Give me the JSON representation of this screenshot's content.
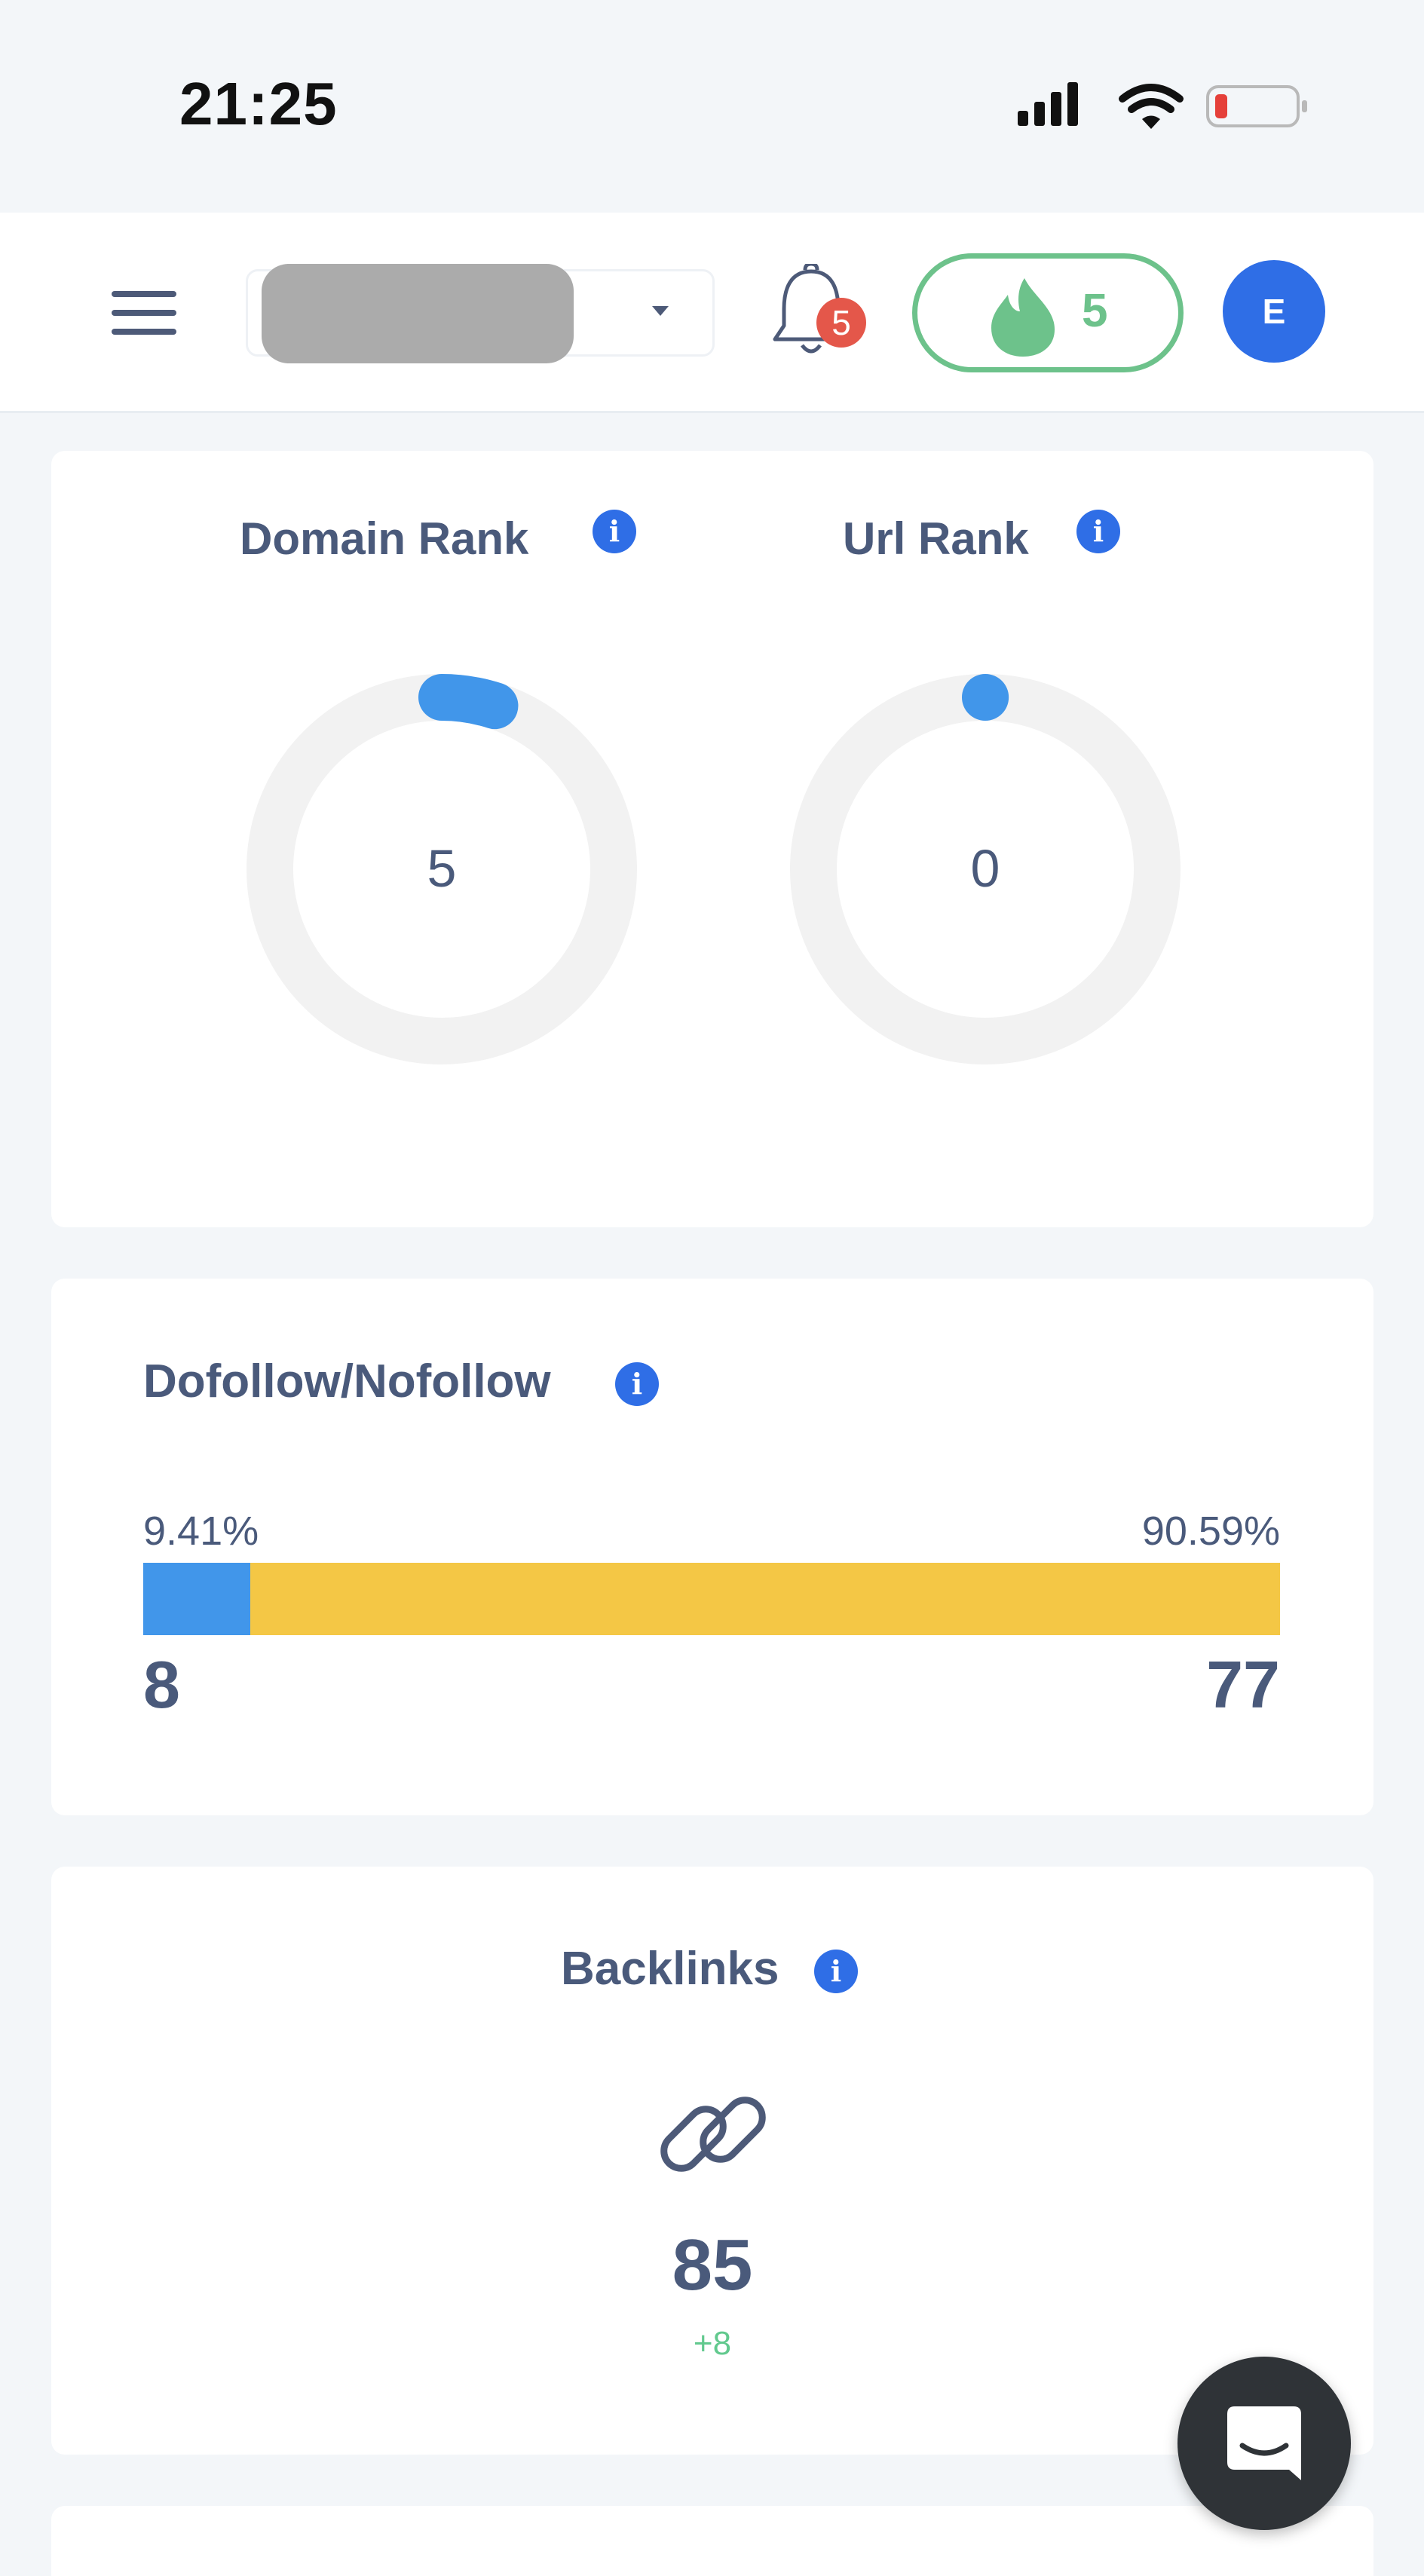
{
  "status_bar": {
    "time": "21:25"
  },
  "header": {
    "project_select": {
      "value": ""
    },
    "notifications": {
      "badge_count": "5"
    },
    "streak": {
      "count": "5"
    },
    "avatar": {
      "initial": "E"
    }
  },
  "rank_card": {
    "domain_rank": {
      "title": "Domain Rank",
      "value": "5",
      "max": 100,
      "info": "i"
    },
    "url_rank": {
      "title": "Url Rank",
      "value": "0",
      "max": 100,
      "info": "i"
    }
  },
  "follow_card": {
    "title": "Dofollow/Nofollow",
    "info": "i",
    "dofollow_percent_label": "9.41%",
    "nofollow_percent_label": "90.59%",
    "dofollow_fraction": 0.0941,
    "dofollow_count": "8",
    "nofollow_count": "77"
  },
  "backlinks_card": {
    "title": "Backlinks",
    "info": "i",
    "value": "85",
    "delta": "+8"
  },
  "colors": {
    "accent_blue": "#2f6ee6",
    "dofollow_blue": "#4196ea",
    "nofollow_yellow": "#f4c745",
    "streak_green": "#6dc28b",
    "ring_track": "#f2f2f2"
  },
  "icons": [
    "menu-icon",
    "bell-icon",
    "flame-icon",
    "info-icon",
    "link-icon",
    "chat-icon",
    "signal-icon",
    "wifi-icon",
    "battery-icon"
  ]
}
